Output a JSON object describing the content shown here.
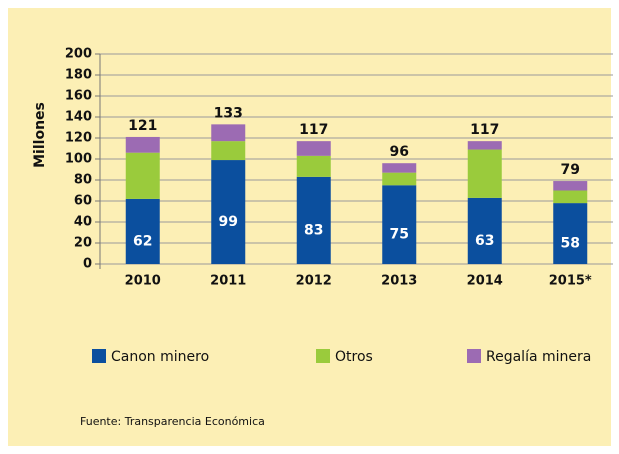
{
  "chart_data": {
    "type": "stacked_bar",
    "axis_label": "Millones",
    "categories": [
      "2010",
      "2011",
      "2012",
      "2013",
      "2014",
      "2015*"
    ],
    "series": [
      {
        "name": "Canon minero",
        "color": "#0b4f9e",
        "values": [
          62,
          99,
          83,
          75,
          63,
          58
        ]
      },
      {
        "name": "Otros",
        "color": "#9acb3c",
        "values": [
          44,
          18,
          20,
          12,
          46,
          12
        ]
      },
      {
        "name": "Regalía minera",
        "color": "#9c6bb3",
        "values": [
          15,
          16,
          14,
          9,
          8,
          9
        ]
      }
    ],
    "totals": [
      121,
      133,
      117,
      96,
      117,
      79
    ],
    "ylim": [
      0,
      200
    ],
    "yticks": [
      0,
      20,
      40,
      60,
      80,
      100,
      120,
      140,
      160,
      180,
      200
    ],
    "grid": true,
    "source": "Fuente: Transparencia Económica"
  }
}
